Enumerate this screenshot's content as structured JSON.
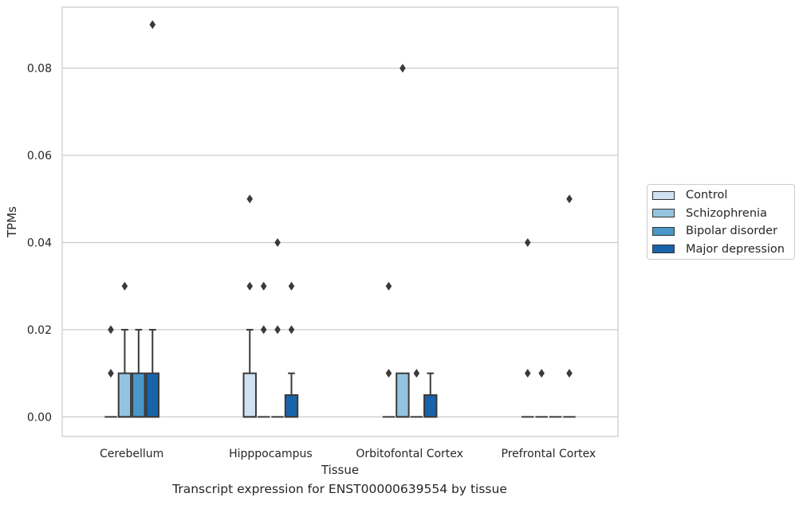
{
  "chart_data": {
    "type": "box",
    "title": "",
    "xlabel": "Tissue",
    "ylabel": "TPMs",
    "caption": "Transcript expression for ENST00000639554 by tissue",
    "ylim": [
      -0.0045,
      0.094
    ],
    "yticks": [
      "0.00",
      "0.02",
      "0.04",
      "0.06",
      "0.08"
    ],
    "ytick_values": [
      0.0,
      0.02,
      0.04,
      0.06,
      0.08
    ],
    "grid": true,
    "legend_position": "right",
    "categories": [
      "Cerebellum",
      "Hipppocampus",
      "Orbitofontal Cortex",
      "Prefrontal Cortex"
    ],
    "series": [
      {
        "name": "Control",
        "color": "#d0e1f2",
        "boxes": [
          {
            "q1": 0,
            "median": 0,
            "q3": 0,
            "whisker_low": 0,
            "whisker_high": 0,
            "outliers": [
              0.01,
              0.02
            ]
          },
          {
            "q1": 0,
            "median": 0,
            "q3": 0.01,
            "whisker_low": 0,
            "whisker_high": 0.02,
            "outliers": [
              0.03,
              0.05
            ]
          },
          {
            "q1": 0,
            "median": 0,
            "q3": 0,
            "whisker_low": 0,
            "whisker_high": 0,
            "outliers": [
              0.01,
              0.03
            ]
          },
          {
            "q1": 0,
            "median": 0,
            "q3": 0,
            "whisker_low": 0,
            "whisker_high": 0,
            "outliers": [
              0.01,
              0.04
            ]
          }
        ]
      },
      {
        "name": "Schizophrenia",
        "color": "#94c4df",
        "boxes": [
          {
            "q1": 0,
            "median": 0,
            "q3": 0.01,
            "whisker_low": 0,
            "whisker_high": 0.02,
            "outliers": [
              0.03
            ]
          },
          {
            "q1": 0,
            "median": 0,
            "q3": 0,
            "whisker_low": 0,
            "whisker_high": 0,
            "outliers": [
              0.02,
              0.03
            ]
          },
          {
            "q1": 0,
            "median": 0,
            "q3": 0.01,
            "whisker_low": 0,
            "whisker_high": 0.01,
            "outliers": [
              0.08
            ]
          },
          {
            "q1": 0,
            "median": 0,
            "q3": 0,
            "whisker_low": 0,
            "whisker_high": 0,
            "outliers": [
              0.01
            ]
          }
        ]
      },
      {
        "name": "Bipolar disorder",
        "color": "#4a98c9",
        "boxes": [
          {
            "q1": 0,
            "median": 0,
            "q3": 0.01,
            "whisker_low": 0,
            "whisker_high": 0.02,
            "outliers": []
          },
          {
            "q1": 0,
            "median": 0,
            "q3": 0,
            "whisker_low": 0,
            "whisker_high": 0,
            "outliers": [
              0.02,
              0.04
            ]
          },
          {
            "q1": 0,
            "median": 0,
            "q3": 0,
            "whisker_low": 0,
            "whisker_high": 0,
            "outliers": [
              0.01
            ]
          },
          {
            "q1": 0,
            "median": 0,
            "q3": 0,
            "whisker_low": 0,
            "whisker_high": 0,
            "outliers": []
          }
        ]
      },
      {
        "name": "Major depression",
        "color": "#1764ab",
        "boxes": [
          {
            "q1": 0,
            "median": 0,
            "q3": 0.01,
            "whisker_low": 0,
            "whisker_high": 0.02,
            "outliers": [
              0.09
            ]
          },
          {
            "q1": 0,
            "median": 0,
            "q3": 0.005,
            "whisker_low": 0,
            "whisker_high": 0.01,
            "outliers": [
              0.02,
              0.03
            ]
          },
          {
            "q1": 0,
            "median": 0,
            "q3": 0.005,
            "whisker_low": 0,
            "whisker_high": 0.01,
            "outliers": []
          },
          {
            "q1": 0,
            "median": 0,
            "q3": 0,
            "whisker_low": 0,
            "whisker_high": 0,
            "outliers": [
              0.01,
              0.05
            ]
          }
        ]
      }
    ]
  }
}
